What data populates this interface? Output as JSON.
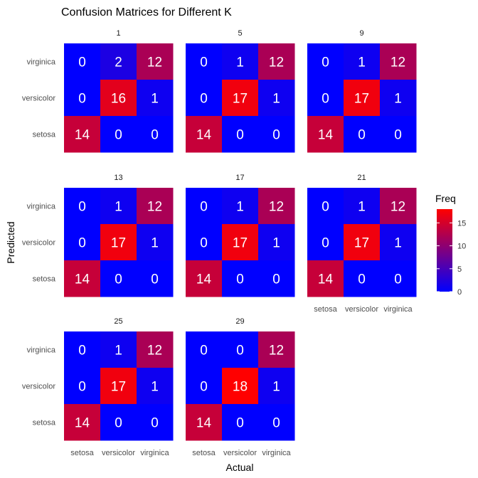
{
  "chart_data": {
    "type": "heatmap",
    "title": "Confusion Matrices for Different K",
    "xlabel": "Actual",
    "ylabel": "Predicted",
    "x_categories": [
      "setosa",
      "versicolor",
      "virginica"
    ],
    "y_categories": [
      "setosa",
      "versicolor",
      "virginica"
    ],
    "panels": [
      {
        "k": "1",
        "matrix": {
          "virginica": [
            0,
            2,
            12
          ],
          "versicolor": [
            0,
            16,
            1
          ],
          "setosa": [
            14,
            0,
            0
          ]
        }
      },
      {
        "k": "5",
        "matrix": {
          "virginica": [
            0,
            1,
            12
          ],
          "versicolor": [
            0,
            17,
            1
          ],
          "setosa": [
            14,
            0,
            0
          ]
        }
      },
      {
        "k": "9",
        "matrix": {
          "virginica": [
            0,
            1,
            12
          ],
          "versicolor": [
            0,
            17,
            1
          ],
          "setosa": [
            14,
            0,
            0
          ]
        }
      },
      {
        "k": "13",
        "matrix": {
          "virginica": [
            0,
            1,
            12
          ],
          "versicolor": [
            0,
            17,
            1
          ],
          "setosa": [
            14,
            0,
            0
          ]
        }
      },
      {
        "k": "17",
        "matrix": {
          "virginica": [
            0,
            1,
            12
          ],
          "versicolor": [
            0,
            17,
            1
          ],
          "setosa": [
            14,
            0,
            0
          ]
        }
      },
      {
        "k": "21",
        "matrix": {
          "virginica": [
            0,
            1,
            12
          ],
          "versicolor": [
            0,
            17,
            1
          ],
          "setosa": [
            14,
            0,
            0
          ]
        }
      },
      {
        "k": "25",
        "matrix": {
          "virginica": [
            0,
            1,
            12
          ],
          "versicolor": [
            0,
            17,
            1
          ],
          "setosa": [
            14,
            0,
            0
          ]
        }
      },
      {
        "k": "29",
        "matrix": {
          "virginica": [
            0,
            0,
            12
          ],
          "versicolor": [
            0,
            18,
            1
          ],
          "setosa": [
            14,
            0,
            0
          ]
        }
      }
    ],
    "legend": {
      "title": "Freq",
      "ticks": [
        0,
        5,
        10,
        15
      ],
      "min": 0,
      "max": 18,
      "low_color": "#0000ff",
      "high_color": "#ff0000",
      "placement": "right"
    }
  }
}
